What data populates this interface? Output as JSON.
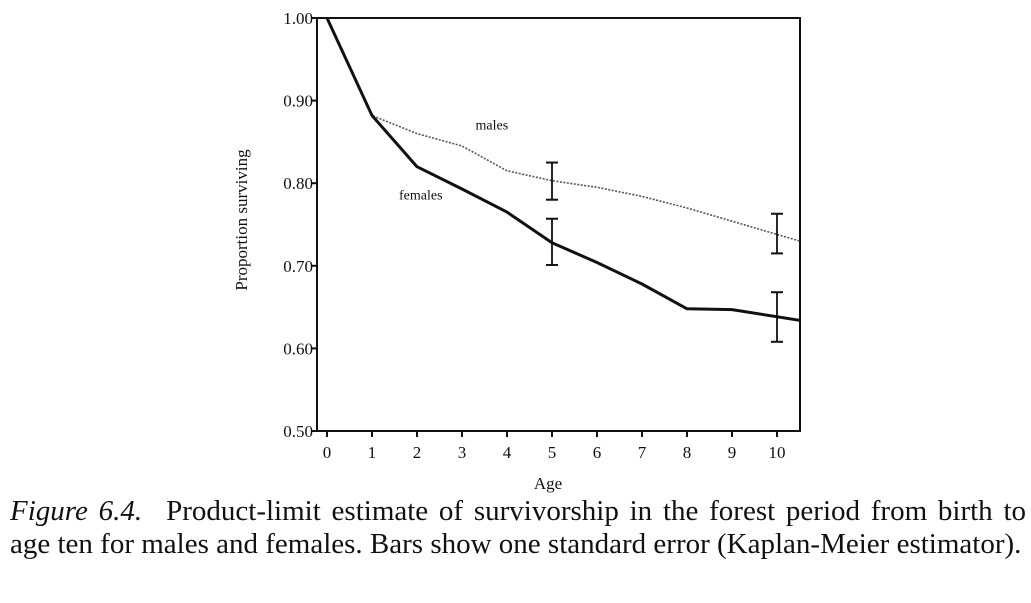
{
  "chart_data": {
    "type": "line",
    "title": "",
    "xlabel": "Age",
    "ylabel": "Proportion surviving",
    "xlim": [
      0,
      10.5
    ],
    "ylim": [
      0.5,
      1.0
    ],
    "x_ticks": [
      0,
      1,
      2,
      3,
      4,
      5,
      6,
      7,
      8,
      9,
      10
    ],
    "y_ticks": [
      0.5,
      0.6,
      0.7,
      0.8,
      0.9,
      1.0
    ],
    "y_tick_labels": [
      "0.50",
      "0.60",
      "0.70",
      "0.80",
      "0.90",
      "1.00"
    ],
    "series": [
      {
        "name": "males",
        "style": "dotted",
        "color": "#555555",
        "x": [
          0,
          1,
          2,
          3,
          4,
          5,
          6,
          7,
          8,
          9,
          10.5
        ],
        "y": [
          1.0,
          0.882,
          0.86,
          0.845,
          0.815,
          0.803,
          0.795,
          0.784,
          0.77,
          0.754,
          0.73
        ]
      },
      {
        "name": "females",
        "style": "solid",
        "color": "#111111",
        "x": [
          0,
          1,
          2,
          3,
          4,
          5,
          6,
          7,
          8,
          9,
          10.5
        ],
        "y": [
          1.0,
          0.882,
          0.82,
          0.793,
          0.765,
          0.728,
          0.704,
          0.678,
          0.648,
          0.647,
          0.634
        ]
      }
    ],
    "error_bars": [
      {
        "series": "males",
        "x": 5,
        "low": 0.78,
        "high": 0.825
      },
      {
        "series": "males",
        "x": 10,
        "low": 0.715,
        "high": 0.763
      },
      {
        "series": "females",
        "x": 5,
        "low": 0.701,
        "high": 0.757
      },
      {
        "series": "females",
        "x": 10,
        "low": 0.608,
        "high": 0.668
      }
    ],
    "annotations": [
      {
        "text": "males",
        "x": 3.3,
        "y": 0.865
      },
      {
        "text": "females",
        "x": 1.6,
        "y": 0.78
      }
    ]
  },
  "caption": {
    "label": "Figure 6.4.",
    "text": "Product-limit estimate of survivorship in the forest period from birth to age ten for males and females. Bars show one standard error (Kaplan-Meier estimator)."
  }
}
